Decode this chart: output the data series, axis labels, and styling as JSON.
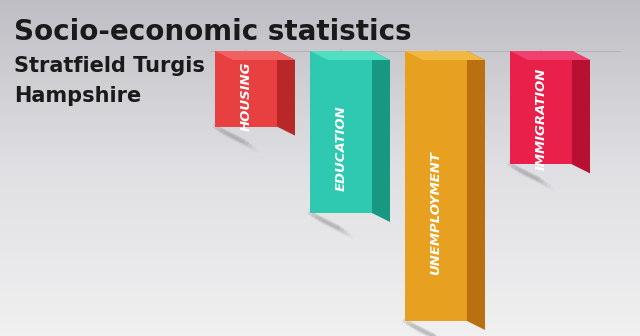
{
  "title": "Socio-economic statistics",
  "subtitle1": "Stratfield Turgis",
  "subtitle2": "Hampshire",
  "categories": [
    "HOUSING",
    "EDUCATION",
    "UNEMPLOYMENT",
    "IMMIGRATION"
  ],
  "values": [
    0.28,
    0.6,
    1.0,
    0.42
  ],
  "front_colors": [
    "#E84040",
    "#2EC9B0",
    "#E8A020",
    "#E8204A"
  ],
  "side_colors": [
    "#B82828",
    "#189880",
    "#B87010",
    "#B81030"
  ],
  "top_colors": [
    "#F06060",
    "#50DFC0",
    "#F0B840",
    "#F04070"
  ],
  "title_fontsize": 20,
  "subtitle_fontsize": 15,
  "label_fontsize": 9.5,
  "bg_color_lt": "#E8E8E8",
  "bg_color_dk": "#C0C0C8"
}
